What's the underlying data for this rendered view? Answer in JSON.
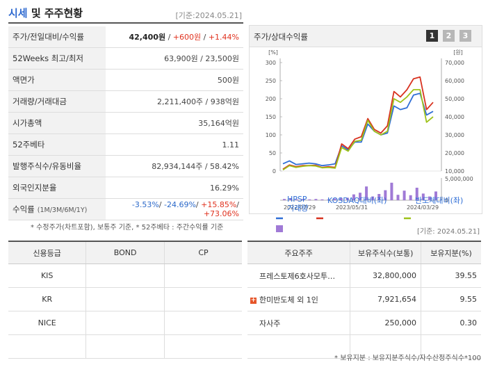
{
  "header": {
    "title_main": "시세",
    "title_rest": " 및 주주현황",
    "basis": "[기준:2024.05.21]"
  },
  "price_table": [
    {
      "label": "주가/전일대비/수익률",
      "value_parts": [
        {
          "t": "42,400원",
          "c": "bold"
        },
        {
          "t": " / ",
          "c": ""
        },
        {
          "t": "+600원",
          "c": "red"
        },
        {
          "t": " / ",
          "c": ""
        },
        {
          "t": "+1.44%",
          "c": "red"
        }
      ]
    },
    {
      "label": "52Weeks 최고/최저",
      "value_parts": [
        {
          "t": "63,900원 / 23,500원",
          "c": ""
        }
      ]
    },
    {
      "label": "액면가",
      "value_parts": [
        {
          "t": "500원",
          "c": ""
        }
      ]
    },
    {
      "label": "거래량/거래대금",
      "value_parts": [
        {
          "t": "2,211,400주 / 938억원",
          "c": ""
        }
      ]
    },
    {
      "label": "시가총액",
      "value_parts": [
        {
          "t": "35,164억원",
          "c": ""
        }
      ]
    },
    {
      "label": "52주베타",
      "value_parts": [
        {
          "t": "1.11",
          "c": ""
        }
      ]
    },
    {
      "label": "발행주식수/유동비율",
      "value_parts": [
        {
          "t": "82,934,144주 / 58.42%",
          "c": ""
        }
      ]
    },
    {
      "label": "외국인지분율",
      "value_parts": [
        {
          "t": "16.29%",
          "c": ""
        }
      ]
    },
    {
      "label": "수익률",
      "label_small": "(1M/3M/6M/1Y)",
      "value_parts": [
        {
          "t": "-3.53%",
          "c": "blue"
        },
        {
          "t": "/ ",
          "c": ""
        },
        {
          "t": "-24.69%",
          "c": "blue"
        },
        {
          "t": "/ ",
          "c": ""
        },
        {
          "t": "+15.85%",
          "c": "red"
        },
        {
          "t": "/ ",
          "c": ""
        },
        {
          "t": "+73.06%",
          "c": "red"
        }
      ]
    }
  ],
  "price_note": "* 수정주가(차트포함), 보통주 기준, * 52주베타 : 주간수익률 기준",
  "chart_panel": {
    "title": "주가/상대수익률",
    "pages": [
      "1",
      "2",
      "3"
    ]
  },
  "chart_data": {
    "type": "line",
    "left_axis_unit": "[%]",
    "right_axis_unit": "[원]",
    "left_ticks": [
      "300",
      "250",
      "200",
      "150",
      "100",
      "50",
      "0"
    ],
    "right_ticks": [
      "70,000",
      "60,000",
      "50,000",
      "40,000",
      "30,000",
      "20,000",
      "10,000"
    ],
    "volume_tick": "5,000,000",
    "volume_zero": "0",
    "x_labels": [
      "2022/07/29",
      "2023/05/31",
      "2024/03/29"
    ],
    "ylim_pct": [
      0,
      300
    ],
    "series": [
      {
        "name": "HPSP",
        "color": "#2f6ed6",
        "values": [
          20,
          28,
          18,
          20,
          22,
          20,
          15,
          17,
          20,
          70,
          58,
          80,
          80,
          130,
          110,
          100,
          105,
          180,
          170,
          175,
          210,
          215,
          155,
          165
        ]
      },
      {
        "name": "KOSDAQ대비(좌)",
        "color": "#d8321f",
        "values": [
          5,
          17,
          12,
          15,
          15,
          16,
          10,
          12,
          10,
          75,
          62,
          88,
          95,
          145,
          115,
          105,
          125,
          220,
          205,
          225,
          255,
          260,
          170,
          190
        ]
      },
      {
        "name": "반도체대비(좌)",
        "color": "#9ec21a",
        "values": [
          3,
          15,
          10,
          13,
          15,
          14,
          9,
          10,
          8,
          65,
          55,
          82,
          85,
          140,
          110,
          100,
          110,
          200,
          190,
          205,
          225,
          225,
          135,
          150
        ]
      }
    ],
    "volume": {
      "name": "거래량",
      "color": "#a07ad6",
      "values": [
        0.3,
        0.5,
        0.2,
        0.3,
        0.2,
        0.3,
        0.2,
        0.2,
        0.4,
        0.5,
        0.6,
        1.4,
        1.8,
        3.3,
        0.9,
        1.5,
        2.4,
        4.2,
        1.3,
        2.3,
        1.2,
        3.0,
        1.6,
        0.9,
        2.1
      ]
    }
  },
  "credit_table": {
    "headers": [
      "신용등급",
      "BOND",
      "CP"
    ],
    "rows": [
      [
        "KIS",
        "",
        ""
      ],
      [
        "KR",
        "",
        ""
      ],
      [
        "NICE",
        "",
        ""
      ],
      [
        "",
        "",
        ""
      ]
    ]
  },
  "holders_basis": "[기준: 2024.05.21]",
  "holders_table": {
    "headers": [
      "주요주주",
      "보유주식수(보통)",
      "보유지분(%)"
    ],
    "rows": [
      {
        "name": "프레스토제6호사모투…",
        "shares": "32,800,000",
        "pct": "39.55",
        "plus": false
      },
      {
        "name": "한미반도체 외 1인",
        "shares": "7,921,654",
        "pct": "9.55",
        "plus": true
      },
      {
        "name": "자사주",
        "shares": "250,000",
        "pct": "0.30",
        "plus": false
      },
      {
        "name": "",
        "shares": "",
        "pct": "",
        "plus": false
      }
    ]
  },
  "holders_note": "* 보유지분 : 보유지분주식수/자수산정주식수*100"
}
